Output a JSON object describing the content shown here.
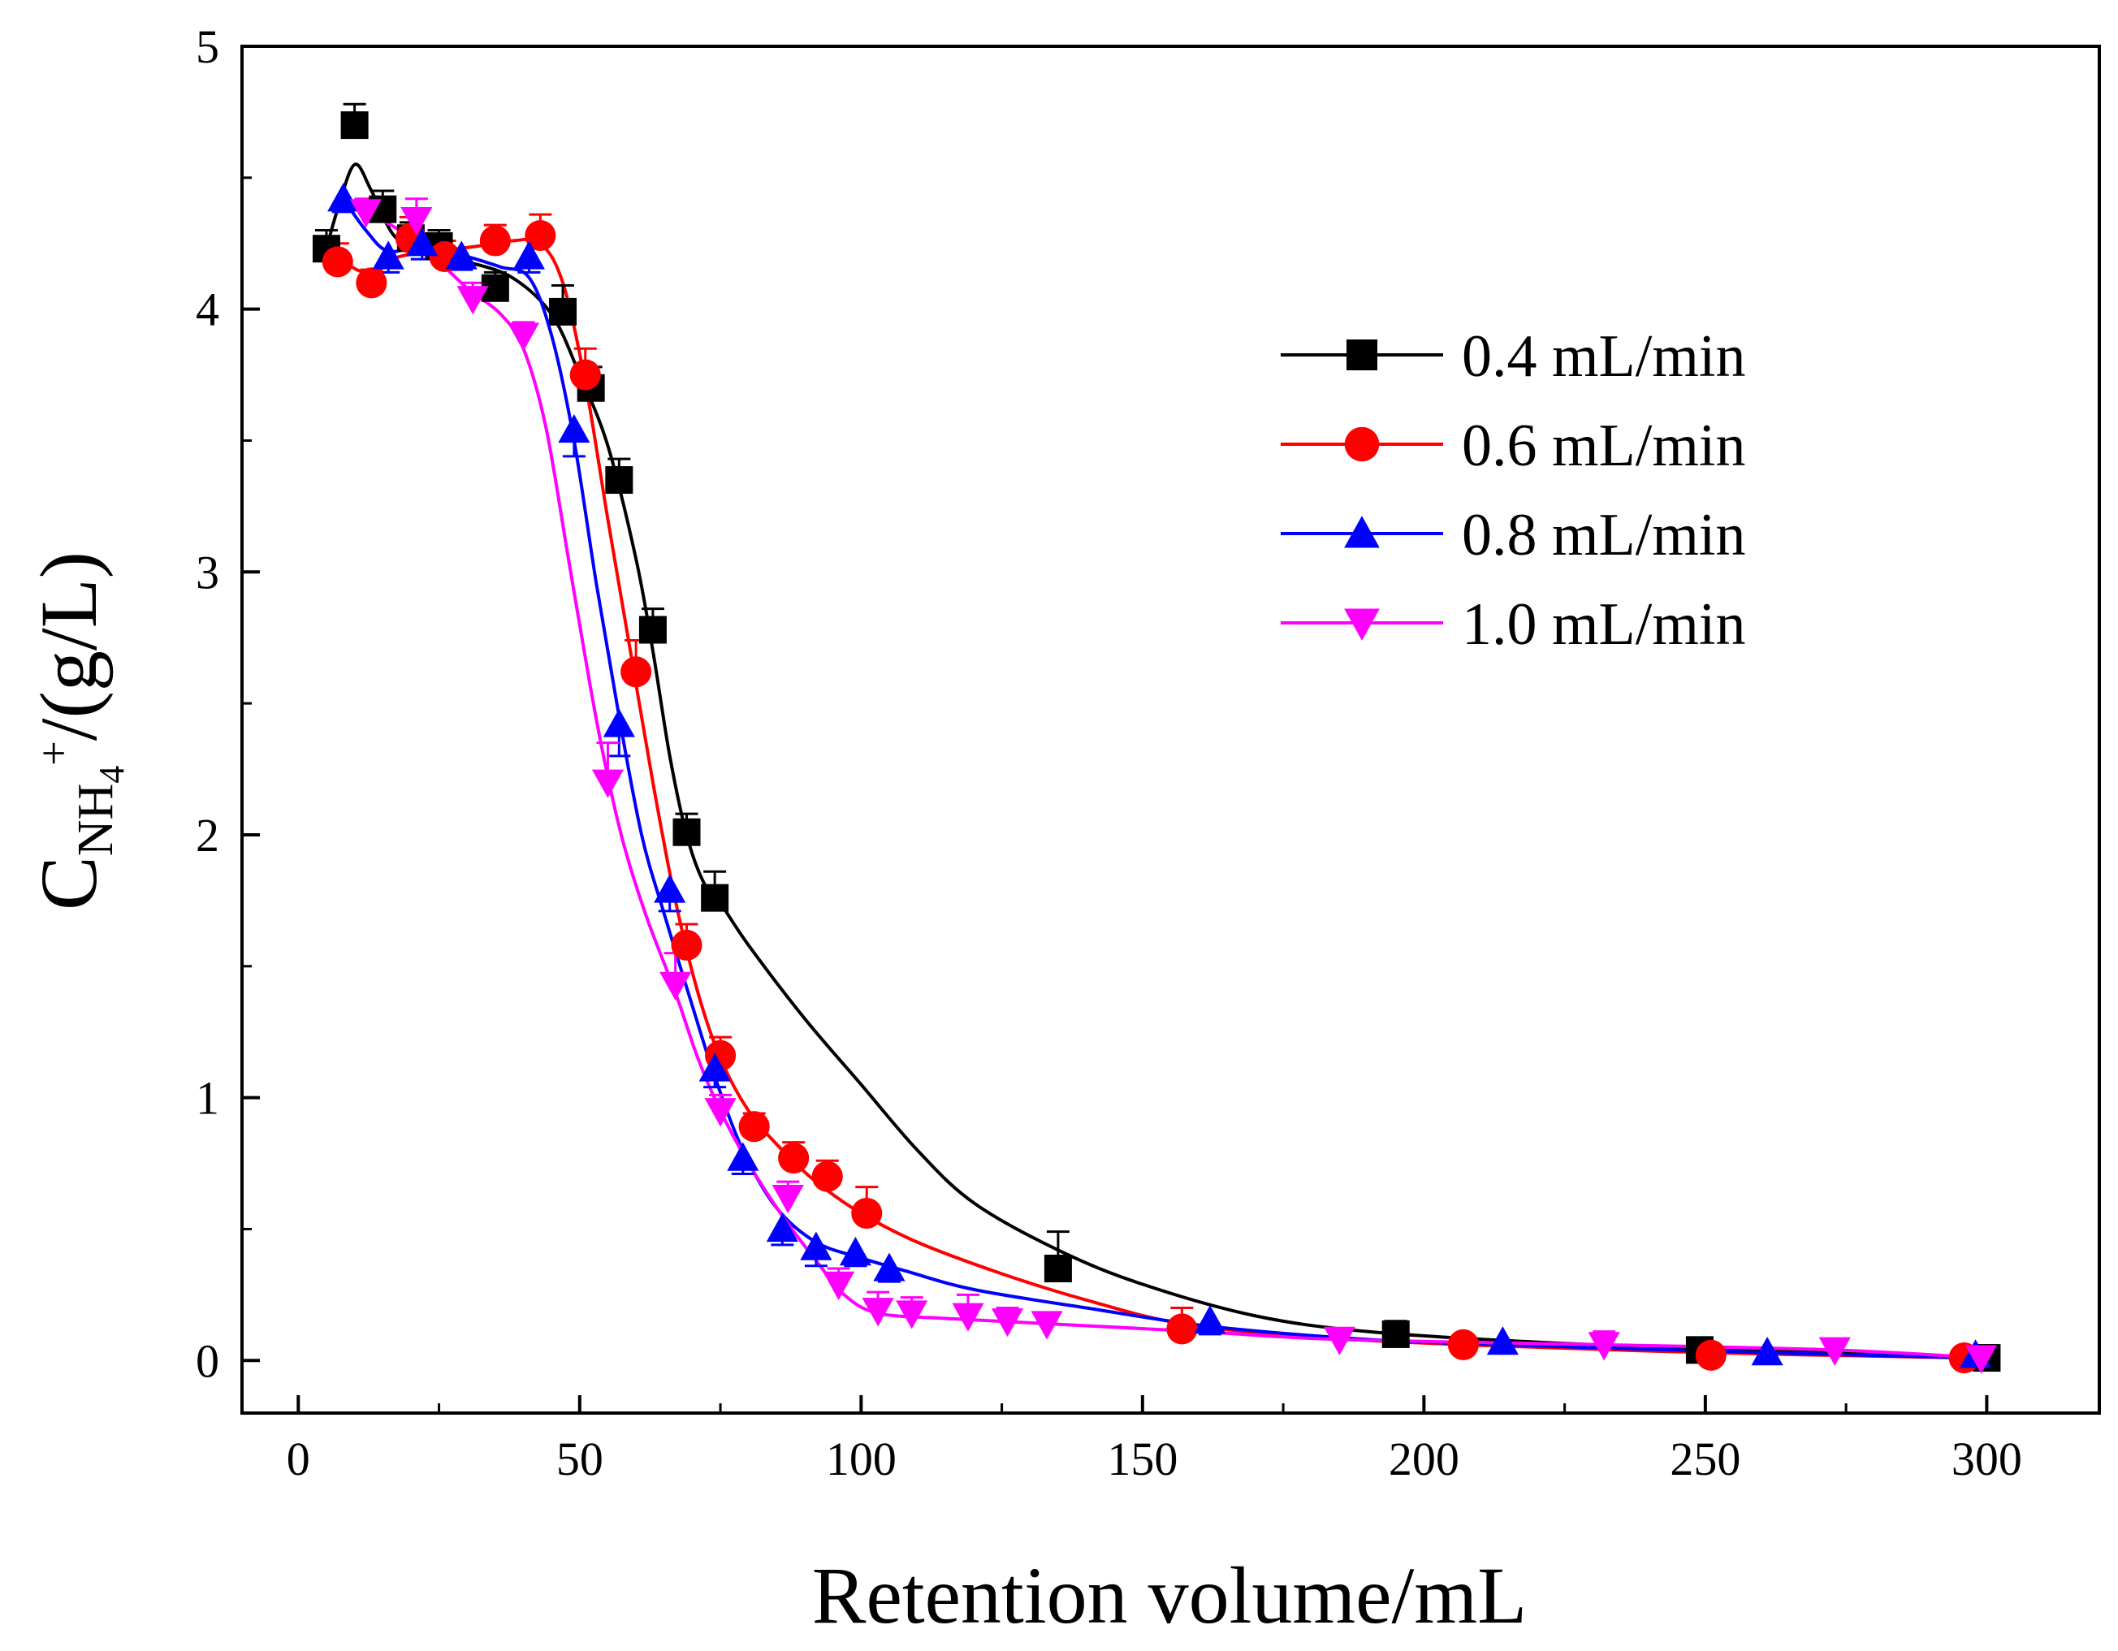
{
  "chart_data": {
    "type": "scatter",
    "title": "",
    "xlabel": "Retention volume/mL",
    "ylabel": {
      "main": "C",
      "sub": "NH",
      "subsub": "4",
      "sup": "+",
      "tail": "/(g/L)"
    },
    "xlim": [
      -10,
      320
    ],
    "ylim": [
      -0.2,
      5
    ],
    "x_ticks": [
      0,
      50,
      100,
      150,
      200,
      250,
      300
    ],
    "y_ticks": [
      0,
      1,
      2,
      3,
      4,
      5
    ],
    "legend_position": "top-right",
    "series": [
      {
        "name": "0.4 mL/min",
        "color": "#000000",
        "marker": "square",
        "x": [
          5,
          10,
          15,
          20,
          25,
          35,
          47,
          52,
          57,
          63,
          69,
          74,
          135,
          195,
          249,
          300
        ],
        "y": [
          4.23,
          4.7,
          4.38,
          4.27,
          4.24,
          4.08,
          3.99,
          3.7,
          3.35,
          2.78,
          2.01,
          1.76,
          0.35,
          0.1,
          0.04,
          0.01
        ],
        "err": [
          0.07,
          0.08,
          0.07,
          0.06,
          0.06,
          0.06,
          0.1,
          0.08,
          0.08,
          0.08,
          0.07,
          0.1,
          0.14,
          0.05,
          0.04,
          0.03
        ],
        "fit": [
          [
            5,
            4.23
          ],
          [
            7,
            4.38
          ],
          [
            10,
            4.55
          ],
          [
            13,
            4.45
          ],
          [
            17,
            4.28
          ],
          [
            22,
            4.22
          ],
          [
            30,
            4.18
          ],
          [
            38,
            4.12
          ],
          [
            45,
            3.98
          ],
          [
            50,
            3.75
          ],
          [
            55,
            3.48
          ],
          [
            60,
            3.05
          ],
          [
            63,
            2.7
          ],
          [
            66,
            2.3
          ],
          [
            69,
            2.0
          ],
          [
            72,
            1.82
          ],
          [
            75,
            1.74
          ],
          [
            80,
            1.58
          ],
          [
            90,
            1.3
          ],
          [
            100,
            1.05
          ],
          [
            110,
            0.8
          ],
          [
            120,
            0.6
          ],
          [
            135,
            0.42
          ],
          [
            150,
            0.29
          ],
          [
            170,
            0.17
          ],
          [
            190,
            0.11
          ],
          [
            220,
            0.07
          ],
          [
            250,
            0.045
          ],
          [
            300,
            0.01
          ]
        ]
      },
      {
        "name": "0.6 mL/min",
        "color": "#ff0000",
        "marker": "circle",
        "x": [
          7,
          13,
          20,
          26,
          35,
          43,
          51,
          60,
          69,
          75,
          81,
          88,
          94,
          101,
          157,
          207,
          251,
          296
        ],
        "y": [
          4.18,
          4.1,
          4.27,
          4.2,
          4.26,
          4.28,
          3.75,
          2.62,
          1.58,
          1.16,
          0.89,
          0.77,
          0.7,
          0.56,
          0.12,
          0.06,
          0.02,
          0.01
        ],
        "err": [
          0.07,
          0.05,
          0.08,
          0.06,
          0.06,
          0.08,
          0.1,
          0.12,
          0.08,
          0.07,
          0.05,
          0.06,
          0.06,
          0.1,
          0.08,
          0.03,
          0.02,
          0.02
        ],
        "fit": [
          [
            7,
            4.2
          ],
          [
            12,
            4.14
          ],
          [
            18,
            4.2
          ],
          [
            25,
            4.22
          ],
          [
            32,
            4.24
          ],
          [
            38,
            4.26
          ],
          [
            43,
            4.25
          ],
          [
            47,
            4.1
          ],
          [
            51,
            3.72
          ],
          [
            55,
            3.2
          ],
          [
            59,
            2.7
          ],
          [
            63,
            2.2
          ],
          [
            67,
            1.75
          ],
          [
            71,
            1.4
          ],
          [
            75,
            1.15
          ],
          [
            80,
            0.95
          ],
          [
            86,
            0.8
          ],
          [
            92,
            0.68
          ],
          [
            100,
            0.56
          ],
          [
            110,
            0.45
          ],
          [
            125,
            0.33
          ],
          [
            140,
            0.23
          ],
          [
            157,
            0.14
          ],
          [
            180,
            0.09
          ],
          [
            207,
            0.06
          ],
          [
            250,
            0.03
          ],
          [
            296,
            0.01
          ]
        ]
      },
      {
        "name": "0.8 mL/min",
        "color": "#0000ff",
        "marker": "triangle-up",
        "x": [
          8,
          16,
          22,
          29,
          41,
          49,
          57,
          66,
          74,
          79,
          86,
          92,
          99,
          105,
          162,
          214,
          261,
          298
        ],
        "y": [
          4.42,
          4.2,
          4.25,
          4.2,
          4.2,
          3.54,
          2.42,
          1.79,
          1.11,
          0.77,
          0.5,
          0.43,
          0.41,
          0.35,
          0.15,
          0.07,
          0.03,
          0.02
        ],
        "err": [
          0.05,
          0.06,
          0.06,
          0.05,
          0.06,
          0.1,
          0.12,
          0.08,
          0.07,
          0.06,
          0.06,
          0.07,
          0.05,
          0.05,
          0.05,
          0.04,
          0.04,
          0.03
        ],
        "fit": [
          [
            8,
            4.42
          ],
          [
            12,
            4.3
          ],
          [
            16,
            4.22
          ],
          [
            22,
            4.24
          ],
          [
            30,
            4.2
          ],
          [
            36,
            4.16
          ],
          [
            41,
            4.12
          ],
          [
            45,
            3.9
          ],
          [
            49,
            3.5
          ],
          [
            53,
            2.95
          ],
          [
            57,
            2.45
          ],
          [
            61,
            2.0
          ],
          [
            65,
            1.7
          ],
          [
            70,
            1.35
          ],
          [
            74,
            1.08
          ],
          [
            79,
            0.8
          ],
          [
            85,
            0.58
          ],
          [
            92,
            0.45
          ],
          [
            100,
            0.39
          ],
          [
            108,
            0.34
          ],
          [
            120,
            0.27
          ],
          [
            140,
            0.2
          ],
          [
            162,
            0.13
          ],
          [
            190,
            0.08
          ],
          [
            214,
            0.06
          ],
          [
            260,
            0.03
          ],
          [
            298,
            0.01
          ]
        ]
      },
      {
        "name": "1.0 mL/min",
        "color": "#ff00ff",
        "marker": "triangle-down",
        "x": [
          12,
          21,
          31,
          40,
          55,
          67,
          75,
          87,
          96,
          103,
          109,
          119,
          126,
          133,
          185,
          232,
          273,
          299
        ],
        "y": [
          4.37,
          4.34,
          4.04,
          3.9,
          2.2,
          1.43,
          0.95,
          0.62,
          0.29,
          0.19,
          0.18,
          0.17,
          0.15,
          0.14,
          0.08,
          0.06,
          0.04,
          0.01
        ],
        "err": [
          0.05,
          0.08,
          0.06,
          0.05,
          0.15,
          0.12,
          0.06,
          0.06,
          0.06,
          0.07,
          0.06,
          0.08,
          0.05,
          0.04,
          0.04,
          0.05,
          0.04,
          0.04
        ],
        "fit": [
          [
            12,
            4.37
          ],
          [
            18,
            4.3
          ],
          [
            24,
            4.2
          ],
          [
            30,
            4.08
          ],
          [
            36,
            3.98
          ],
          [
            40,
            3.85
          ],
          [
            44,
            3.55
          ],
          [
            48,
            3.05
          ],
          [
            52,
            2.55
          ],
          [
            55,
            2.22
          ],
          [
            58,
            1.95
          ],
          [
            62,
            1.68
          ],
          [
            67,
            1.4
          ],
          [
            71,
            1.15
          ],
          [
            75,
            0.95
          ],
          [
            80,
            0.75
          ],
          [
            86,
            0.55
          ],
          [
            92,
            0.38
          ],
          [
            97,
            0.25
          ],
          [
            103,
            0.18
          ],
          [
            115,
            0.16
          ],
          [
            133,
            0.14
          ],
          [
            160,
            0.11
          ],
          [
            185,
            0.08
          ],
          [
            232,
            0.06
          ],
          [
            273,
            0.04
          ],
          [
            299,
            0.01
          ]
        ]
      }
    ]
  }
}
